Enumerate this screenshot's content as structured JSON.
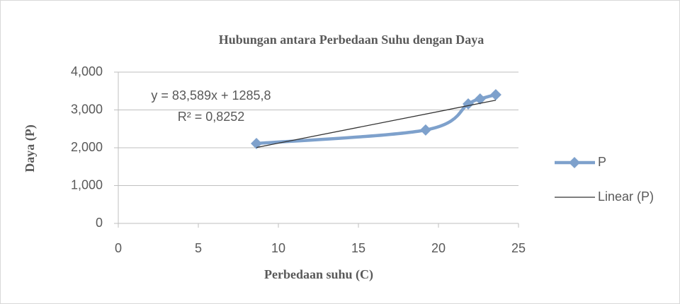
{
  "chart_data": {
    "type": "scatter",
    "title": "Hubungan antara Perbedaan Suhu dengan Daya",
    "xlabel": "Perbedaan suhu (C)",
    "ylabel": "Daya (P)",
    "xlim": [
      0,
      25
    ],
    "xticks": [
      0,
      5,
      10,
      15,
      20,
      25
    ],
    "ylim": [
      0,
      4000
    ],
    "yticks": [
      0,
      {
        "value": 1000,
        "label": "1,000"
      },
      {
        "value": 2000,
        "label": "2,000"
      },
      {
        "value": 3000,
        "label": "3,000"
      },
      {
        "value": 4000,
        "label": "4,000"
      }
    ],
    "grid": true,
    "legend": "right",
    "series": [
      {
        "name": "P",
        "color": "#7ea1cc",
        "x": [
          8.63,
          19.2,
          21.86,
          22.6,
          23.58
        ],
        "values": [
          2112,
          2470,
          3159,
          3290,
          3402
        ]
      },
      {
        "name": "Linear (P)",
        "color": "#333333",
        "x": [
          8.63,
          23.58
        ],
        "values": [
          2007,
          3257
        ]
      }
    ],
    "annotations": [
      "y = 83,589x + 1285,8",
      "R² = 0,8252"
    ]
  }
}
